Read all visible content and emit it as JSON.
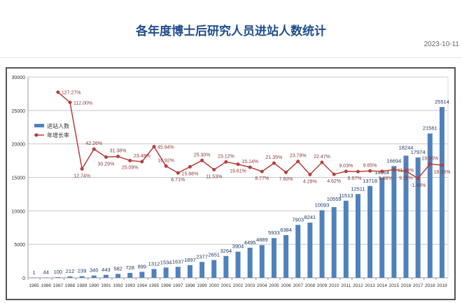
{
  "page": {
    "title": "各年度博士后研究人员进站人数统计",
    "date": "2023-10-11"
  },
  "chart_data": {
    "type": "bar",
    "title": "",
    "categories": [
      "1985",
      "1986",
      "1987",
      "1988",
      "1989",
      "1990",
      "1991",
      "1992",
      "1993",
      "1994",
      "1995",
      "1996",
      "1997",
      "1998",
      "1999",
      "2000",
      "2001",
      "2002",
      "2003",
      "2004",
      "2005",
      "2006",
      "2007",
      "2008",
      "2009",
      "2010",
      "2011",
      "2012",
      "2013",
      "2014",
      "2015",
      "2016",
      "2017",
      "2018",
      "2019"
    ],
    "ylim": [
      0,
      30000
    ],
    "yticks": [
      0,
      5000,
      10000,
      15000,
      20000,
      25000,
      30000
    ],
    "secondary_ylim": [
      -150,
      150
    ],
    "grid": true,
    "legend_position": "left",
    "series": [
      {
        "name": "进站人数",
        "type": "bar",
        "color": "#4f81bd",
        "values": [
          1,
          44,
          100,
          212,
          239,
          340,
          443,
          582,
          728,
          899,
          1312,
          1534,
          1637,
          1897,
          2377,
          2651,
          3264,
          3904,
          4495,
          4889,
          5933,
          6384,
          7903,
          8241,
          10093,
          10559,
          11513,
          12511,
          13718,
          14964,
          16694,
          18244,
          17974,
          21561,
          25514
        ]
      },
      {
        "name": "年增长率",
        "type": "line",
        "color": "#b5403d",
        "unit": "%",
        "values": [
          null,
          null,
          127.27,
          112.0,
          12.74,
          42.26,
          30.29,
          31.38,
          25.09,
          23.49,
          45.94,
          16.92,
          6.71,
          15.88,
          25.3,
          11.53,
          23.12,
          19.61,
          15.14,
          8.77,
          21.35,
          7.6,
          23.79,
          4.28,
          22.47,
          4.62,
          9.03,
          8.67,
          9.65,
          9.08,
          11.56,
          9.28,
          -1.48,
          19.96,
          18.33
        ]
      }
    ]
  }
}
